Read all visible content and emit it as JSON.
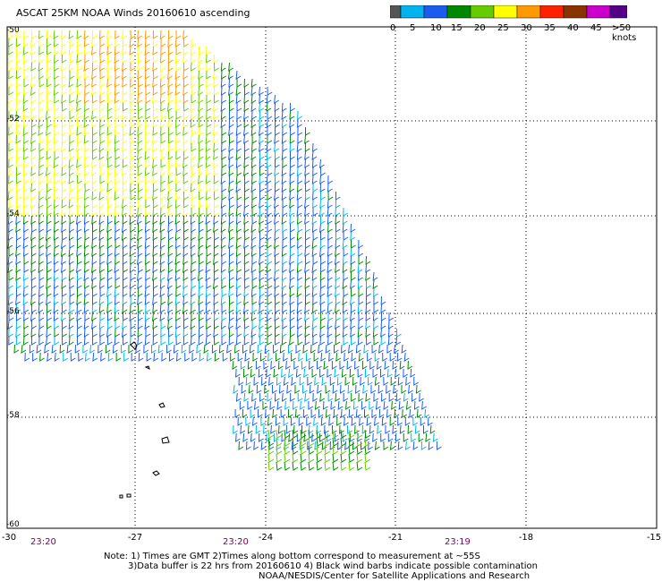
{
  "title": "ASCAT 25KM NOAA Winds 20160610 ascending",
  "colorbar": {
    "labels": [
      "0",
      "5",
      "10",
      "15",
      "20",
      "25",
      "30",
      "35",
      "40",
      "45",
      ">50 knots"
    ],
    "colors": [
      "#555555",
      "#00b4f0",
      "#1a5cf0",
      "#008800",
      "#66cc00",
      "#ffff00",
      "#ff9900",
      "#ff2200",
      "#883300",
      "#cc00cc",
      "#550088"
    ]
  },
  "axes": {
    "x_ticks": [
      "-30",
      "-27",
      "-24",
      "-21",
      "-18",
      "-15"
    ],
    "y_ticks": [
      "-50",
      "-52",
      "-54",
      "-56",
      "-58",
      "-60"
    ]
  },
  "time_labels": [
    "23:20",
    "23:20",
    "23:19"
  ],
  "notes": [
    "Note: 1) Times are GMT 2)Times along bottom correspond to measurement at ~55S",
    "3)Data buffer is 22 hrs from 20160610 4) Black wind barbs indicate possible contamination",
    "NOAA/NESDIS/Center for Satellite Applications and Research"
  ]
}
